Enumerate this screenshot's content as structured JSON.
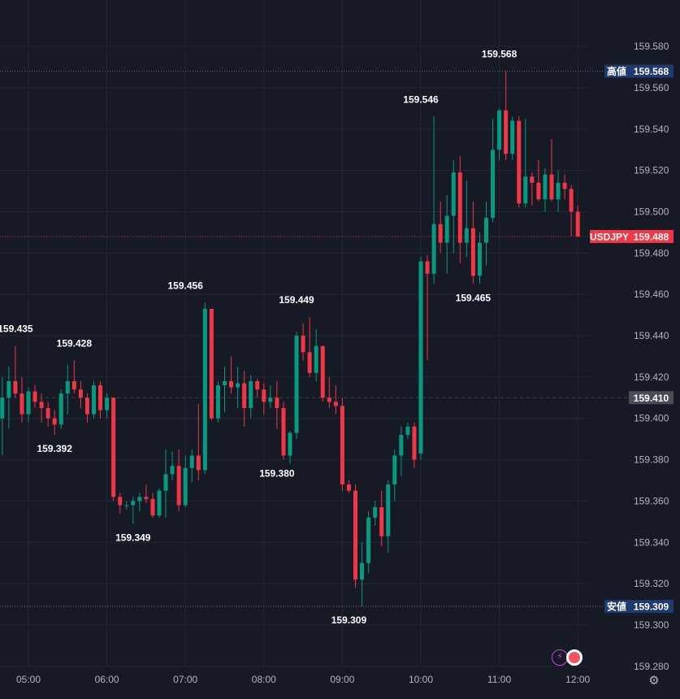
{
  "chart_data": {
    "type": "candlestick",
    "symbol": "USDJPY",
    "y_ticks": [
      "159.580",
      "159.560",
      "159.540",
      "159.520",
      "159.500",
      "159.480",
      "159.460",
      "159.440",
      "159.420",
      "159.400",
      "159.380",
      "159.360",
      "159.340",
      "159.320",
      "159.300",
      "159.280"
    ],
    "x_ticks": [
      "05:00",
      "06:00",
      "07:00",
      "08:00",
      "09:00",
      "10:00",
      "11:00",
      "12:00"
    ],
    "ylim": [
      159.276,
      159.593
    ],
    "grid": true,
    "price_lines": {
      "high": {
        "label": "高値",
        "value": "159.568",
        "color": "#1e3a6e"
      },
      "current": {
        "label": "USDJPY",
        "value": "159.488",
        "color": "#f23645"
      },
      "crosshair": {
        "value": "159.410",
        "color": "#4a4d55"
      },
      "low": {
        "label": "安値",
        "value": "159.309",
        "color": "#1e3a6e"
      }
    },
    "annotations": [
      {
        "text": "159.435",
        "time": "04:50",
        "price": 159.435,
        "pos": "above"
      },
      {
        "text": "159.428",
        "time": "05:35",
        "price": 159.428,
        "pos": "above"
      },
      {
        "text": "159.392",
        "time": "05:20",
        "price": 159.392,
        "pos": "below"
      },
      {
        "text": "159.349",
        "time": "06:20",
        "price": 159.349,
        "pos": "below"
      },
      {
        "text": "159.456",
        "time": "07:00",
        "price": 159.456,
        "pos": "above"
      },
      {
        "text": "159.380",
        "time": "08:10",
        "price": 159.38,
        "pos": "below"
      },
      {
        "text": "159.449",
        "time": "08:25",
        "price": 159.449,
        "pos": "above"
      },
      {
        "text": "159.309",
        "time": "09:05",
        "price": 159.309,
        "pos": "below"
      },
      {
        "text": "159.546",
        "time": "10:00",
        "price": 159.546,
        "pos": "above"
      },
      {
        "text": "159.465",
        "time": "10:40",
        "price": 159.465,
        "pos": "below"
      },
      {
        "text": "159.568",
        "time": "11:00",
        "price": 159.568,
        "pos": "above"
      }
    ],
    "up_color": "#089981",
    "down_color": "#f23645",
    "candles": [
      {
        "t": "04:40",
        "o": 159.4,
        "h": 159.42,
        "l": 159.382,
        "c": 159.41
      },
      {
        "t": "04:45",
        "o": 159.41,
        "h": 159.425,
        "l": 159.395,
        "c": 159.418
      },
      {
        "t": "04:50",
        "o": 159.418,
        "h": 159.435,
        "l": 159.41,
        "c": 159.412
      },
      {
        "t": "04:55",
        "o": 159.412,
        "h": 159.42,
        "l": 159.398,
        "c": 159.402
      },
      {
        "t": "05:00",
        "o": 159.402,
        "h": 159.415,
        "l": 159.398,
        "c": 159.413
      },
      {
        "t": "05:05",
        "o": 159.413,
        "h": 159.416,
        "l": 159.405,
        "c": 159.408
      },
      {
        "t": "05:10",
        "o": 159.408,
        "h": 159.412,
        "l": 159.398,
        "c": 159.405
      },
      {
        "t": "05:15",
        "o": 159.405,
        "h": 159.408,
        "l": 159.396,
        "c": 159.4
      },
      {
        "t": "05:20",
        "o": 159.4,
        "h": 159.404,
        "l": 159.392,
        "c": 159.397
      },
      {
        "t": "05:25",
        "o": 159.397,
        "h": 159.414,
        "l": 159.395,
        "c": 159.412
      },
      {
        "t": "05:30",
        "o": 159.412,
        "h": 159.426,
        "l": 159.402,
        "c": 159.418
      },
      {
        "t": "05:35",
        "o": 159.418,
        "h": 159.428,
        "l": 159.412,
        "c": 159.414
      },
      {
        "t": "05:40",
        "o": 159.414,
        "h": 159.418,
        "l": 159.405,
        "c": 159.41
      },
      {
        "t": "05:45",
        "o": 159.41,
        "h": 159.412,
        "l": 159.398,
        "c": 159.402
      },
      {
        "t": "05:50",
        "o": 159.402,
        "h": 159.418,
        "l": 159.4,
        "c": 159.416
      },
      {
        "t": "05:55",
        "o": 159.416,
        "h": 159.418,
        "l": 159.4,
        "c": 159.404
      },
      {
        "t": "06:00",
        "o": 159.404,
        "h": 159.412,
        "l": 159.4,
        "c": 159.41
      },
      {
        "t": "06:05",
        "o": 159.41,
        "h": 159.41,
        "l": 159.36,
        "c": 159.362
      },
      {
        "t": "06:10",
        "o": 159.362,
        "h": 159.364,
        "l": 159.354,
        "c": 159.358
      },
      {
        "t": "06:15",
        "o": 159.358,
        "h": 159.36,
        "l": 159.356,
        "c": 159.358
      },
      {
        "t": "06:20",
        "o": 159.358,
        "h": 159.362,
        "l": 159.349,
        "c": 159.36
      },
      {
        "t": "06:25",
        "o": 159.36,
        "h": 159.364,
        "l": 159.355,
        "c": 159.362
      },
      {
        "t": "06:30",
        "o": 159.362,
        "h": 159.368,
        "l": 159.359,
        "c": 159.361
      },
      {
        "t": "06:35",
        "o": 159.361,
        "h": 159.364,
        "l": 159.352,
        "c": 159.353
      },
      {
        "t": "06:40",
        "o": 159.353,
        "h": 159.366,
        "l": 159.352,
        "c": 159.365
      },
      {
        "t": "06:45",
        "o": 159.365,
        "h": 159.385,
        "l": 159.352,
        "c": 159.373
      },
      {
        "t": "06:50",
        "o": 159.373,
        "h": 159.384,
        "l": 159.37,
        "c": 159.377
      },
      {
        "t": "06:55",
        "o": 159.377,
        "h": 159.385,
        "l": 159.355,
        "c": 159.358
      },
      {
        "t": "07:00",
        "o": 159.358,
        "h": 159.382,
        "l": 159.357,
        "c": 159.376
      },
      {
        "t": "07:05",
        "o": 159.376,
        "h": 159.385,
        "l": 159.369,
        "c": 159.382
      },
      {
        "t": "07:10",
        "o": 159.382,
        "h": 159.407,
        "l": 159.37,
        "c": 159.375
      },
      {
        "t": "07:15",
        "o": 159.375,
        "h": 159.456,
        "l": 159.373,
        "c": 159.453
      },
      {
        "t": "07:20",
        "o": 159.453,
        "h": 159.453,
        "l": 159.399,
        "c": 159.4
      },
      {
        "t": "07:25",
        "o": 159.4,
        "h": 159.418,
        "l": 159.398,
        "c": 159.416
      },
      {
        "t": "07:30",
        "o": 159.416,
        "h": 159.425,
        "l": 159.403,
        "c": 159.418
      },
      {
        "t": "07:35",
        "o": 159.418,
        "h": 159.43,
        "l": 159.412,
        "c": 159.415
      },
      {
        "t": "07:40",
        "o": 159.415,
        "h": 159.425,
        "l": 159.405,
        "c": 159.417
      },
      {
        "t": "07:45",
        "o": 159.417,
        "h": 159.423,
        "l": 159.396,
        "c": 159.405
      },
      {
        "t": "07:50",
        "o": 159.405,
        "h": 159.421,
        "l": 159.4,
        "c": 159.418
      },
      {
        "t": "07:55",
        "o": 159.418,
        "h": 159.419,
        "l": 159.41,
        "c": 159.414
      },
      {
        "t": "08:00",
        "o": 159.414,
        "h": 159.417,
        "l": 159.402,
        "c": 159.408
      },
      {
        "t": "08:05",
        "o": 159.408,
        "h": 159.416,
        "l": 159.405,
        "c": 159.41
      },
      {
        "t": "08:10",
        "o": 159.41,
        "h": 159.418,
        "l": 159.395,
        "c": 159.405
      },
      {
        "t": "08:15",
        "o": 159.405,
        "h": 159.408,
        "l": 159.38,
        "c": 159.382
      },
      {
        "t": "08:20",
        "o": 159.382,
        "h": 159.394,
        "l": 159.378,
        "c": 159.393
      },
      {
        "t": "08:25",
        "o": 159.393,
        "h": 159.442,
        "l": 159.39,
        "c": 159.44
      },
      {
        "t": "08:30",
        "o": 159.44,
        "h": 159.446,
        "l": 159.428,
        "c": 159.432
      },
      {
        "t": "08:35",
        "o": 159.432,
        "h": 159.449,
        "l": 159.42,
        "c": 159.422
      },
      {
        "t": "08:40",
        "o": 159.422,
        "h": 159.443,
        "l": 159.418,
        "c": 159.435
      },
      {
        "t": "08:45",
        "o": 159.435,
        "h": 159.435,
        "l": 159.408,
        "c": 159.41
      },
      {
        "t": "08:50",
        "o": 159.41,
        "h": 159.42,
        "l": 159.405,
        "c": 159.408
      },
      {
        "t": "08:55",
        "o": 159.408,
        "h": 159.416,
        "l": 159.402,
        "c": 159.406
      },
      {
        "t": "09:00",
        "o": 159.406,
        "h": 159.41,
        "l": 159.365,
        "c": 159.368
      },
      {
        "t": "09:05",
        "o": 159.368,
        "h": 159.37,
        "l": 159.364,
        "c": 159.365
      },
      {
        "t": "09:10",
        "o": 159.365,
        "h": 159.368,
        "l": 159.318,
        "c": 159.322
      },
      {
        "t": "09:15",
        "o": 159.322,
        "h": 159.34,
        "l": 159.309,
        "c": 159.33
      },
      {
        "t": "09:20",
        "o": 159.33,
        "h": 159.355,
        "l": 159.325,
        "c": 159.352
      },
      {
        "t": "09:25",
        "o": 159.352,
        "h": 159.36,
        "l": 159.348,
        "c": 159.357
      },
      {
        "t": "09:30",
        "o": 159.357,
        "h": 159.365,
        "l": 159.338,
        "c": 159.343
      },
      {
        "t": "09:35",
        "o": 159.343,
        "h": 159.37,
        "l": 159.335,
        "c": 159.368
      },
      {
        "t": "09:40",
        "o": 159.368,
        "h": 159.385,
        "l": 159.36,
        "c": 159.382
      },
      {
        "t": "09:45",
        "o": 159.382,
        "h": 159.396,
        "l": 159.372,
        "c": 159.392
      },
      {
        "t": "09:50",
        "o": 159.392,
        "h": 159.398,
        "l": 159.39,
        "c": 159.396
      },
      {
        "t": "09:55",
        "o": 159.396,
        "h": 159.398,
        "l": 159.376,
        "c": 159.38
      },
      {
        "t": "10:00",
        "o": 159.383,
        "h": 159.478,
        "l": 159.38,
        "c": 159.476
      },
      {
        "t": "10:05",
        "o": 159.476,
        "h": 159.479,
        "l": 159.428,
        "c": 159.47
      },
      {
        "t": "10:10",
        "o": 159.47,
        "h": 159.546,
        "l": 159.465,
        "c": 159.494
      },
      {
        "t": "10:15",
        "o": 159.494,
        "h": 159.505,
        "l": 159.48,
        "c": 159.485
      },
      {
        "t": "10:20",
        "o": 159.485,
        "h": 159.508,
        "l": 159.47,
        "c": 159.498
      },
      {
        "t": "10:25",
        "o": 159.498,
        "h": 159.525,
        "l": 159.48,
        "c": 159.519
      },
      {
        "t": "10:30",
        "o": 159.519,
        "h": 159.527,
        "l": 159.475,
        "c": 159.485
      },
      {
        "t": "10:35",
        "o": 159.485,
        "h": 159.515,
        "l": 159.478,
        "c": 159.492
      },
      {
        "t": "10:40",
        "o": 159.492,
        "h": 159.505,
        "l": 159.465,
        "c": 159.469
      },
      {
        "t": "10:45",
        "o": 159.469,
        "h": 159.49,
        "l": 159.465,
        "c": 159.485
      },
      {
        "t": "10:50",
        "o": 159.485,
        "h": 159.505,
        "l": 159.474,
        "c": 159.497
      },
      {
        "t": "10:55",
        "o": 159.497,
        "h": 159.545,
        "l": 159.495,
        "c": 159.53
      },
      {
        "t": "11:00",
        "o": 159.53,
        "h": 159.55,
        "l": 159.525,
        "c": 159.549
      },
      {
        "t": "11:05",
        "o": 159.549,
        "h": 159.568,
        "l": 159.525,
        "c": 159.528
      },
      {
        "t": "11:10",
        "o": 159.528,
        "h": 159.546,
        "l": 159.525,
        "c": 159.544
      },
      {
        "t": "11:15",
        "o": 159.544,
        "h": 159.546,
        "l": 159.502,
        "c": 159.504
      },
      {
        "t": "11:20",
        "o": 159.504,
        "h": 159.545,
        "l": 159.502,
        "c": 159.517
      },
      {
        "t": "11:25",
        "o": 159.517,
        "h": 159.519,
        "l": 159.503,
        "c": 159.514
      },
      {
        "t": "11:30",
        "o": 159.514,
        "h": 159.525,
        "l": 159.505,
        "c": 159.506
      },
      {
        "t": "11:35",
        "o": 159.506,
        "h": 159.521,
        "l": 159.5,
        "c": 159.518
      },
      {
        "t": "11:40",
        "o": 159.518,
        "h": 159.535,
        "l": 159.505,
        "c": 159.506
      },
      {
        "t": "11:45",
        "o": 159.506,
        "h": 159.52,
        "l": 159.5,
        "c": 159.514
      },
      {
        "t": "11:50",
        "o": 159.514,
        "h": 159.518,
        "l": 159.506,
        "c": 159.511
      },
      {
        "t": "11:55",
        "o": 159.511,
        "h": 159.513,
        "l": 159.488,
        "c": 159.5
      },
      {
        "t": "12:00",
        "o": 159.5,
        "h": 159.503,
        "l": 159.488,
        "c": 159.488
      }
    ]
  },
  "icons": {
    "bolt": "bolt-icon",
    "record": "record-icon",
    "settings": "gear-icon"
  },
  "bottom_bar": {
    "bolt_glyph": "⚡",
    "gear_glyph": "⚙"
  }
}
